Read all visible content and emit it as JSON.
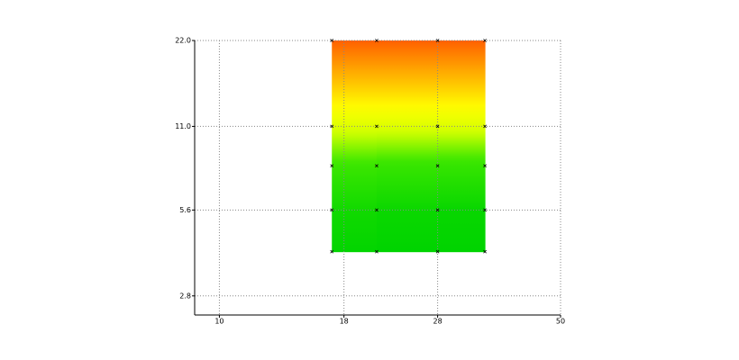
{
  "chart_data": {
    "type": "heatmap",
    "x": [
      17,
      21,
      28,
      35
    ],
    "y": [
      4,
      5.6,
      8,
      11,
      22
    ],
    "z": [
      [
        0.02,
        0.0,
        0.0,
        0.0
      ],
      [
        0.1,
        0.06,
        0.04,
        0.03
      ],
      [
        0.28,
        0.26,
        0.25,
        0.24
      ],
      [
        0.55,
        0.55,
        0.55,
        0.55
      ],
      [
        1,
        1,
        1,
        1
      ]
    ],
    "colormap": [
      [
        0,
        "#00d400"
      ],
      [
        0.3,
        "#40e800"
      ],
      [
        0.5,
        "#ccff00"
      ],
      [
        0.65,
        "#ffff00"
      ],
      [
        1,
        "#ff6000"
      ]
    ],
    "xlim": [
      8.9,
      50
    ],
    "ylim": [
      2.4,
      22
    ],
    "xticks": [
      10,
      18,
      28,
      50
    ],
    "yticks": [
      {
        "value": 2.8,
        "label": "2.8"
      },
      {
        "value": 5.6,
        "label": "5.6"
      },
      {
        "value": 11,
        "label": "11.0"
      },
      {
        "value": 22,
        "label": "22.0"
      }
    ],
    "xscale": "log",
    "yscale": "log",
    "grid": true
  }
}
